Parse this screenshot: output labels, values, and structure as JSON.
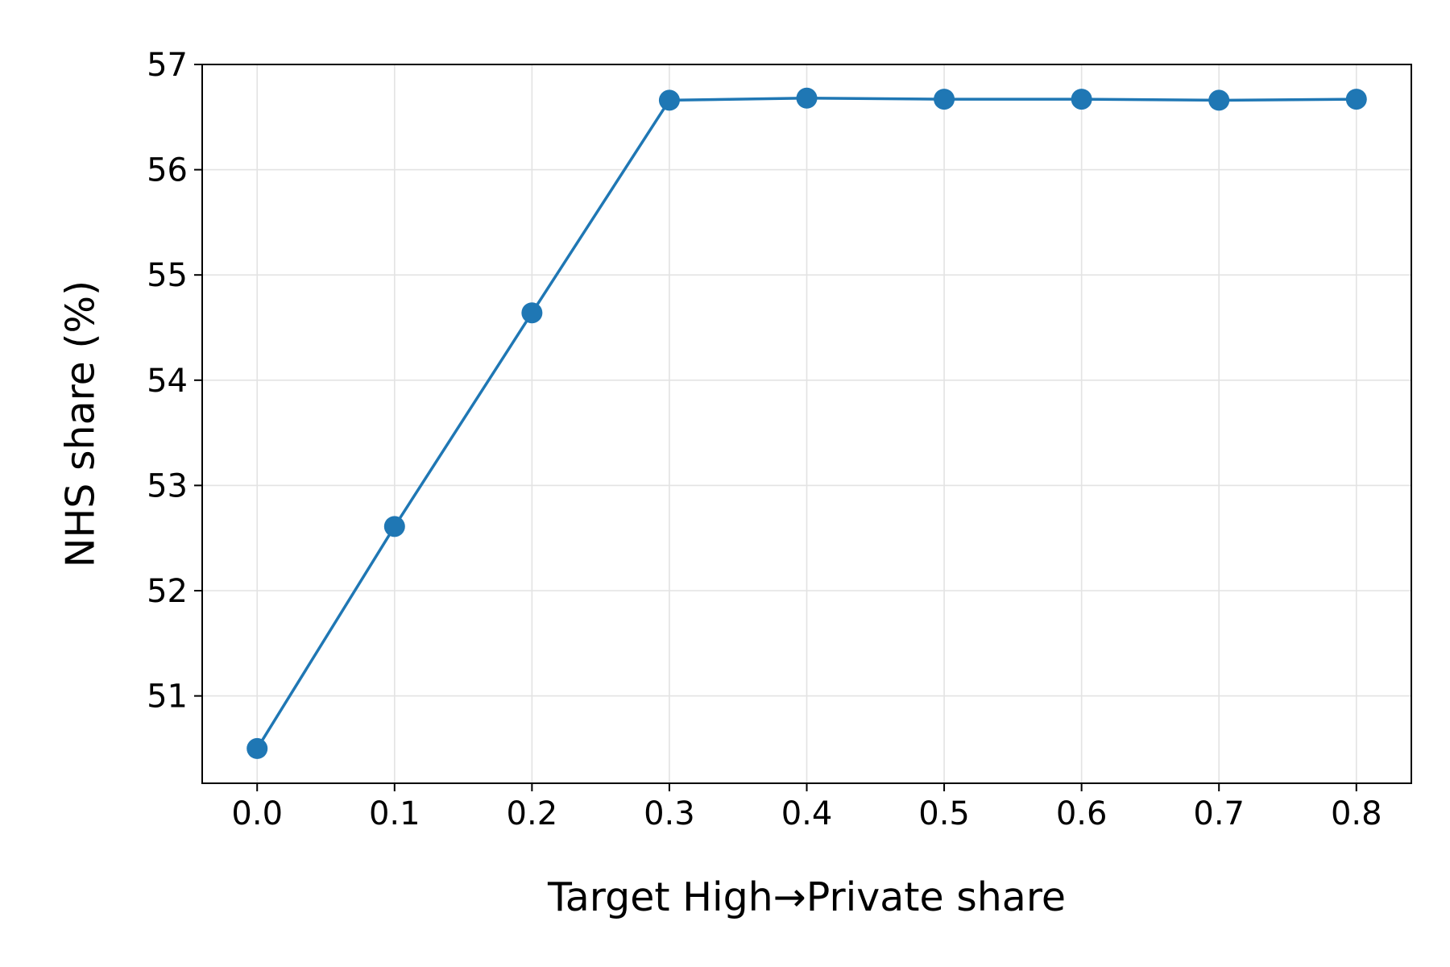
{
  "chart_data": {
    "type": "line",
    "title": "",
    "xlabel": "Target High→Private share",
    "ylabel": "NHS share (%)",
    "x": [
      0.0,
      0.1,
      0.2,
      0.3,
      0.4,
      0.5,
      0.6,
      0.7,
      0.8
    ],
    "x_tick_labels": [
      "0.0",
      "0.1",
      "0.2",
      "0.3",
      "0.4",
      "0.5",
      "0.6",
      "0.7",
      "0.8"
    ],
    "y_ticks": [
      51,
      52,
      53,
      54,
      55,
      56,
      57
    ],
    "y_tick_labels": [
      "51",
      "52",
      "53",
      "54",
      "55",
      "56",
      "57"
    ],
    "xlim": [
      -0.04,
      0.84
    ],
    "ylim": [
      50.17,
      57.0
    ],
    "grid": true,
    "legend": "none",
    "series": [
      {
        "values": [
          50.5,
          52.61,
          54.64,
          56.66,
          56.68,
          56.67,
          56.67,
          56.66,
          56.67
        ],
        "color": "#1f77b4",
        "marker": "circle"
      }
    ]
  }
}
